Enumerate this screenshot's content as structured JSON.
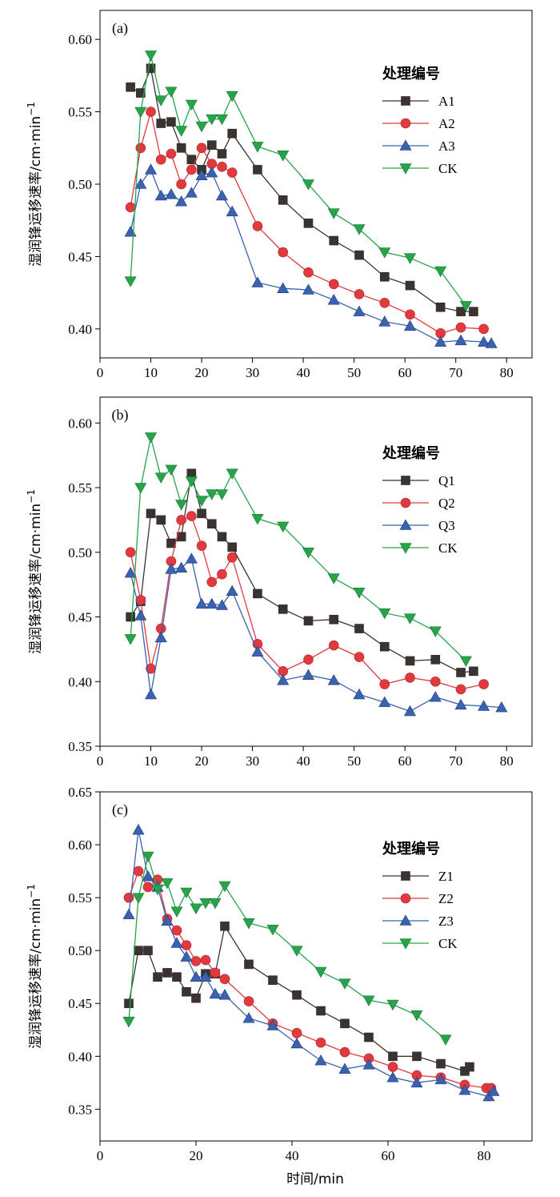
{
  "figure": {
    "xlabel": "时间/min"
  },
  "colors": {
    "A1": "#3a3330",
    "A2": "#e03a3e",
    "A3": "#3a62ae",
    "CK": "#27a34a"
  },
  "chart_data": [
    {
      "type": "line",
      "panel_label": "(a)",
      "ylabel": "湿润锋运移速率/cm·min",
      "ylabel_sup": "−1",
      "xlim": [
        0,
        85
      ],
      "ylim": [
        0.38,
        0.62
      ],
      "xticks": [
        0,
        10,
        20,
        30,
        40,
        50,
        60,
        70,
        80
      ],
      "yticks": [
        0.4,
        0.45,
        0.5,
        0.55,
        0.6
      ],
      "legend": {
        "title": "处理编号",
        "position": "right-top"
      },
      "series": [
        {
          "name": "A1",
          "color": "#3a3330",
          "marker": "square",
          "x": [
            6,
            8,
            10,
            12,
            14,
            16,
            18,
            20,
            22,
            24,
            26,
            31,
            36,
            41,
            46,
            51,
            56,
            61,
            67,
            71,
            73.5
          ],
          "y": [
            0.567,
            0.563,
            0.58,
            0.542,
            0.543,
            0.525,
            0.517,
            0.51,
            0.527,
            0.521,
            0.535,
            0.51,
            0.489,
            0.473,
            0.461,
            0.451,
            0.436,
            0.43,
            0.415,
            0.412,
            0.412
          ]
        },
        {
          "name": "A2",
          "color": "#e03a3e",
          "marker": "circle",
          "x": [
            6,
            8,
            10,
            12,
            14,
            16,
            18,
            20,
            22,
            24,
            26,
            31,
            36,
            41,
            46,
            51,
            56,
            61,
            67,
            71,
            75.5
          ],
          "y": [
            0.484,
            0.525,
            0.55,
            0.517,
            0.521,
            0.5,
            0.51,
            0.525,
            0.514,
            0.512,
            0.508,
            0.471,
            0.453,
            0.439,
            0.431,
            0.424,
            0.418,
            0.41,
            0.397,
            0.401,
            0.4
          ]
        },
        {
          "name": "A3",
          "color": "#3a62ae",
          "marker": "triangle-up",
          "x": [
            6,
            8,
            10,
            12,
            14,
            16,
            18,
            20,
            22,
            24,
            26,
            31,
            36,
            41,
            46,
            51,
            56,
            61,
            67,
            71,
            75.5,
            77
          ],
          "y": [
            0.467,
            0.5,
            0.51,
            0.492,
            0.493,
            0.488,
            0.494,
            0.506,
            0.508,
            0.492,
            0.481,
            0.432,
            0.428,
            0.427,
            0.42,
            0.412,
            0.405,
            0.402,
            0.391,
            0.392,
            0.391,
            0.39
          ]
        },
        {
          "name": "CK",
          "color": "#27a34a",
          "marker": "triangle-down",
          "x": [
            6,
            8,
            10,
            12,
            14,
            16,
            18,
            20,
            22,
            24,
            26,
            31,
            36,
            41,
            46,
            51,
            56,
            61,
            67,
            72
          ],
          "y": [
            0.433,
            0.55,
            0.589,
            0.558,
            0.564,
            0.537,
            0.555,
            0.54,
            0.545,
            0.545,
            0.561,
            0.526,
            0.52,
            0.5,
            0.48,
            0.469,
            0.453,
            0.449,
            0.44,
            0.416
          ]
        }
      ]
    },
    {
      "type": "line",
      "panel_label": "(b)",
      "ylabel": "湿润锋运移速率/cm·min",
      "ylabel_sup": "−1",
      "xlim": [
        0,
        85
      ],
      "ylim": [
        0.35,
        0.62
      ],
      "xticks": [
        0,
        10,
        20,
        30,
        40,
        50,
        60,
        70,
        80
      ],
      "yticks": [
        0.35,
        0.4,
        0.45,
        0.5,
        0.55,
        0.6
      ],
      "legend": {
        "title": "处理编号",
        "position": "right-top"
      },
      "series": [
        {
          "name": "Q1",
          "color": "#3a3330",
          "marker": "square",
          "x": [
            6,
            8,
            10,
            12,
            14,
            16,
            18,
            20,
            22,
            24,
            26,
            31,
            36,
            41,
            46,
            51,
            56,
            61,
            66,
            71,
            73.5
          ],
          "y": [
            0.45,
            0.462,
            0.53,
            0.525,
            0.507,
            0.512,
            0.561,
            0.53,
            0.522,
            0.512,
            0.504,
            0.468,
            0.456,
            0.447,
            0.448,
            0.441,
            0.427,
            0.416,
            0.417,
            0.407,
            0.408
          ]
        },
        {
          "name": "Q2",
          "color": "#e03a3e",
          "marker": "circle",
          "x": [
            6,
            8,
            10,
            12,
            14,
            16,
            18,
            20,
            22,
            24,
            26,
            31,
            36,
            41,
            46,
            51,
            56,
            61,
            66,
            71,
            75.5
          ],
          "y": [
            0.5,
            0.463,
            0.41,
            0.441,
            0.493,
            0.525,
            0.528,
            0.505,
            0.477,
            0.483,
            0.496,
            0.429,
            0.408,
            0.417,
            0.428,
            0.419,
            0.398,
            0.403,
            0.4,
            0.394,
            0.398
          ]
        },
        {
          "name": "Q3",
          "color": "#3a62ae",
          "marker": "triangle-up",
          "x": [
            6,
            8,
            10,
            12,
            14,
            16,
            18,
            20,
            22,
            24,
            26,
            31,
            36,
            41,
            46,
            51,
            56,
            61,
            66,
            71,
            75.5,
            79
          ],
          "y": [
            0.484,
            0.451,
            0.39,
            0.434,
            0.487,
            0.488,
            0.495,
            0.46,
            0.46,
            0.459,
            0.47,
            0.423,
            0.401,
            0.405,
            0.401,
            0.39,
            0.384,
            0.377,
            0.388,
            0.382,
            0.381,
            0.38
          ]
        },
        {
          "name": "CK",
          "color": "#27a34a",
          "marker": "triangle-down",
          "x": [
            6,
            8,
            10,
            12,
            14,
            16,
            18,
            20,
            22,
            24,
            26,
            31,
            36,
            41,
            46,
            51,
            56,
            61,
            66,
            72
          ],
          "y": [
            0.433,
            0.55,
            0.589,
            0.558,
            0.564,
            0.537,
            0.555,
            0.54,
            0.545,
            0.545,
            0.561,
            0.526,
            0.52,
            0.5,
            0.48,
            0.469,
            0.453,
            0.449,
            0.439,
            0.416
          ]
        }
      ]
    },
    {
      "type": "line",
      "panel_label": "(c)",
      "ylabel": "湿润锋运移速率/cm·min",
      "ylabel_sup": "−1",
      "xlim": [
        0,
        90
      ],
      "ylim": [
        0.32,
        0.65
      ],
      "xticks": [
        0,
        20,
        40,
        60,
        80
      ],
      "yticks": [
        0.35,
        0.4,
        0.45,
        0.5,
        0.55,
        0.6,
        0.65
      ],
      "legend": {
        "title": "处理编号",
        "position": "right-top"
      },
      "series": [
        {
          "name": "Z1",
          "color": "#3a3330",
          "marker": "square",
          "x": [
            6,
            8,
            10,
            12,
            14,
            16,
            18,
            20,
            22,
            24,
            26,
            31,
            36,
            41,
            46,
            51,
            56,
            61,
            66,
            71,
            76,
            77
          ],
          "y": [
            0.45,
            0.5,
            0.5,
            0.475,
            0.479,
            0.475,
            0.461,
            0.455,
            0.478,
            0.478,
            0.523,
            0.487,
            0.472,
            0.458,
            0.443,
            0.431,
            0.418,
            0.4,
            0.4,
            0.393,
            0.386,
            0.39
          ]
        },
        {
          "name": "Z2",
          "color": "#e03a3e",
          "marker": "circle",
          "x": [
            6,
            8,
            10,
            12,
            14,
            16,
            18,
            20,
            22,
            24,
            26,
            31,
            36,
            41,
            46,
            51,
            56,
            61,
            66,
            71,
            76,
            80.5,
            81.5
          ],
          "y": [
            0.55,
            0.575,
            0.56,
            0.567,
            0.53,
            0.519,
            0.505,
            0.49,
            0.491,
            0.479,
            0.473,
            0.452,
            0.431,
            0.422,
            0.413,
            0.404,
            0.398,
            0.39,
            0.382,
            0.38,
            0.373,
            0.37,
            0.37
          ]
        },
        {
          "name": "Z3",
          "color": "#3a62ae",
          "marker": "triangle-up",
          "x": [
            6,
            8,
            10,
            12,
            14,
            16,
            18,
            20,
            22,
            24,
            26,
            31,
            36,
            41,
            46,
            51,
            56,
            61,
            66,
            71,
            76,
            81,
            82
          ],
          "y": [
            0.534,
            0.614,
            0.57,
            0.56,
            0.528,
            0.507,
            0.494,
            0.475,
            0.475,
            0.459,
            0.458,
            0.436,
            0.429,
            0.412,
            0.396,
            0.388,
            0.392,
            0.38,
            0.375,
            0.378,
            0.368,
            0.362,
            0.367
          ]
        },
        {
          "name": "CK",
          "color": "#27a34a",
          "marker": "triangle-down",
          "x": [
            6,
            8,
            10,
            12,
            14,
            16,
            18,
            20,
            22,
            24,
            26,
            31,
            36,
            41,
            46,
            51,
            56,
            61,
            66,
            72
          ],
          "y": [
            0.433,
            0.55,
            0.589,
            0.558,
            0.564,
            0.537,
            0.555,
            0.54,
            0.545,
            0.545,
            0.561,
            0.526,
            0.52,
            0.5,
            0.48,
            0.469,
            0.453,
            0.449,
            0.439,
            0.416
          ]
        }
      ]
    }
  ]
}
